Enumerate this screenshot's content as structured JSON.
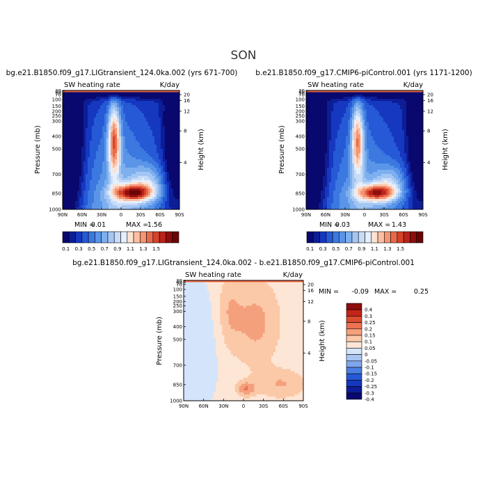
{
  "figure": {
    "title": "SON"
  },
  "chart_data": [
    {
      "type": "heatmap",
      "title": "bg.e21.B1850.f09_g17.LIGtransient_124.0ka.002 (yrs 671-700)",
      "variable": "SW heating rate",
      "units": "K/day",
      "ylabel": "Pressure (mb)",
      "y2label": "Height (km)",
      "xticks": [
        "90N",
        "60N",
        "30N",
        "0",
        "30S",
        "60S",
        "90S"
      ],
      "yticks": [
        "30",
        "50",
        "70",
        "100",
        "150",
        "200",
        "250",
        "300",
        "400",
        "500",
        "700",
        "850",
        "1000"
      ],
      "y2ticks": [
        "20",
        "16",
        "12",
        "8",
        "4"
      ],
      "min_label": "MIN =",
      "min_value": "0.01",
      "max_label": "MAX =",
      "max_value": "1.56",
      "colorbar_labels": [
        "0.1",
        "0.3",
        "0.5",
        "0.7",
        "0.9",
        "1.1",
        "1.3",
        "1.5"
      ]
    },
    {
      "type": "heatmap",
      "title": "b.e21.B1850.f09_g17.CMIP6-piControl.001 (yrs 1171-1200)",
      "variable": "SW heating rate",
      "units": "K/day",
      "ylabel": "Pressure (mb)",
      "y2label": "Height (km)",
      "xticks": [
        "90N",
        "60N",
        "30N",
        "0",
        "30S",
        "60S",
        "90S"
      ],
      "yticks": [
        "30",
        "50",
        "70",
        "100",
        "150",
        "200",
        "250",
        "300",
        "400",
        "500",
        "700",
        "850",
        "1000"
      ],
      "y2ticks": [
        "20",
        "16",
        "12",
        "8",
        "4"
      ],
      "min_label": "MIN =",
      "min_value": "0.03",
      "max_label": "MAX =",
      "max_value": "1.43",
      "colorbar_labels": [
        "0.1",
        "0.3",
        "0.5",
        "0.7",
        "0.9",
        "1.1",
        "1.3",
        "1.5"
      ]
    },
    {
      "type": "heatmap",
      "title": "bg.e21.B1850.f09_g17.LIGtransient_124.0ka.002 - b.e21.B1850.f09_g17.CMIP6-piControl.001",
      "variable": "SW heating rate",
      "units": "K/day",
      "ylabel": "Pressure (mb)",
      "y2label": "Height (km)",
      "xticks": [
        "90N",
        "60N",
        "30N",
        "0",
        "30S",
        "60S",
        "90S"
      ],
      "yticks": [
        "30",
        "50",
        "70",
        "100",
        "150",
        "200",
        "250",
        "300",
        "400",
        "500",
        "700",
        "850",
        "1000"
      ],
      "y2ticks": [
        "20",
        "16",
        "12",
        "8",
        "4"
      ],
      "min_label": "MIN =",
      "min_value": "-0.09",
      "max_label": "MAX =",
      "max_value": "0.25",
      "colorbar_labels": [
        "0.4",
        "0.3",
        "0.25",
        "0.2",
        "0.15",
        "0.1",
        "0.05",
        "0",
        "-0.05",
        "-0.1",
        "-0.15",
        "-0.2",
        "-0.25",
        "-0.3",
        "-0.4"
      ]
    }
  ],
  "palettes": {
    "seq": [
      "#08086e",
      "#0c1d96",
      "#1638c0",
      "#2659d6",
      "#3b78e0",
      "#5a95e8",
      "#7eafee",
      "#a3c6f3",
      "#c8dcf8",
      "#e6effc",
      "#fde2d2",
      "#fbbfa2",
      "#f59574",
      "#e86a4a",
      "#d6422a",
      "#b8231a",
      "#8e0d0d",
      "#6a0505"
    ],
    "diff": [
      "#08086e",
      "#0c1d96",
      "#1638c0",
      "#2659d6",
      "#4a7fe0",
      "#7ea6ec",
      "#a9c6f3",
      "#d4e4fa",
      "#fde6d6",
      "#fbc9a8",
      "#f5a07c",
      "#eb7352",
      "#dc4a30",
      "#c32418",
      "#8e0d0d"
    ]
  }
}
